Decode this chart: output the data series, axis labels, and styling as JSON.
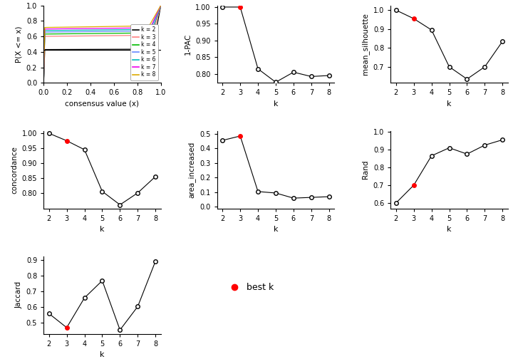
{
  "k_values": [
    2,
    3,
    4,
    5,
    6,
    7,
    8
  ],
  "pac_1minus": [
    1.0,
    1.0,
    0.815,
    0.775,
    0.805,
    0.792,
    0.795
  ],
  "pac_best_k_idx": 1,
  "mean_silhouette": [
    1.0,
    0.955,
    0.895,
    0.7,
    0.635,
    0.7,
    0.835
  ],
  "sil_best_k_idx": 1,
  "concordance": [
    1.0,
    0.975,
    0.945,
    0.805,
    0.76,
    0.8,
    0.855
  ],
  "conc_best_k_idx": 1,
  "area_increased": [
    0.455,
    0.485,
    0.105,
    0.095,
    0.06,
    0.065,
    0.07
  ],
  "area_best_k_idx": 1,
  "rand": [
    0.6,
    0.7,
    0.865,
    0.91,
    0.875,
    0.925,
    0.955
  ],
  "rand_best_k_idx": 1,
  "jaccard": [
    0.56,
    0.47,
    0.66,
    0.77,
    0.455,
    0.605,
    0.895
  ],
  "jacc_best_k_idx": 1,
  "cdf_colors": [
    "#000000",
    "#FF8080",
    "#00BB00",
    "#6688FF",
    "#00BBBB",
    "#EE00EE",
    "#DDAA00"
  ],
  "cdf_labels": [
    "k = 2",
    "k = 3",
    "k = 4",
    "k = 5",
    "k = 6",
    "k = 7",
    "k = 8"
  ],
  "hline_y": 0.43,
  "bg_color": "#FFFFFF",
  "point_color_best": "#FF0000",
  "line_color": "#000000"
}
